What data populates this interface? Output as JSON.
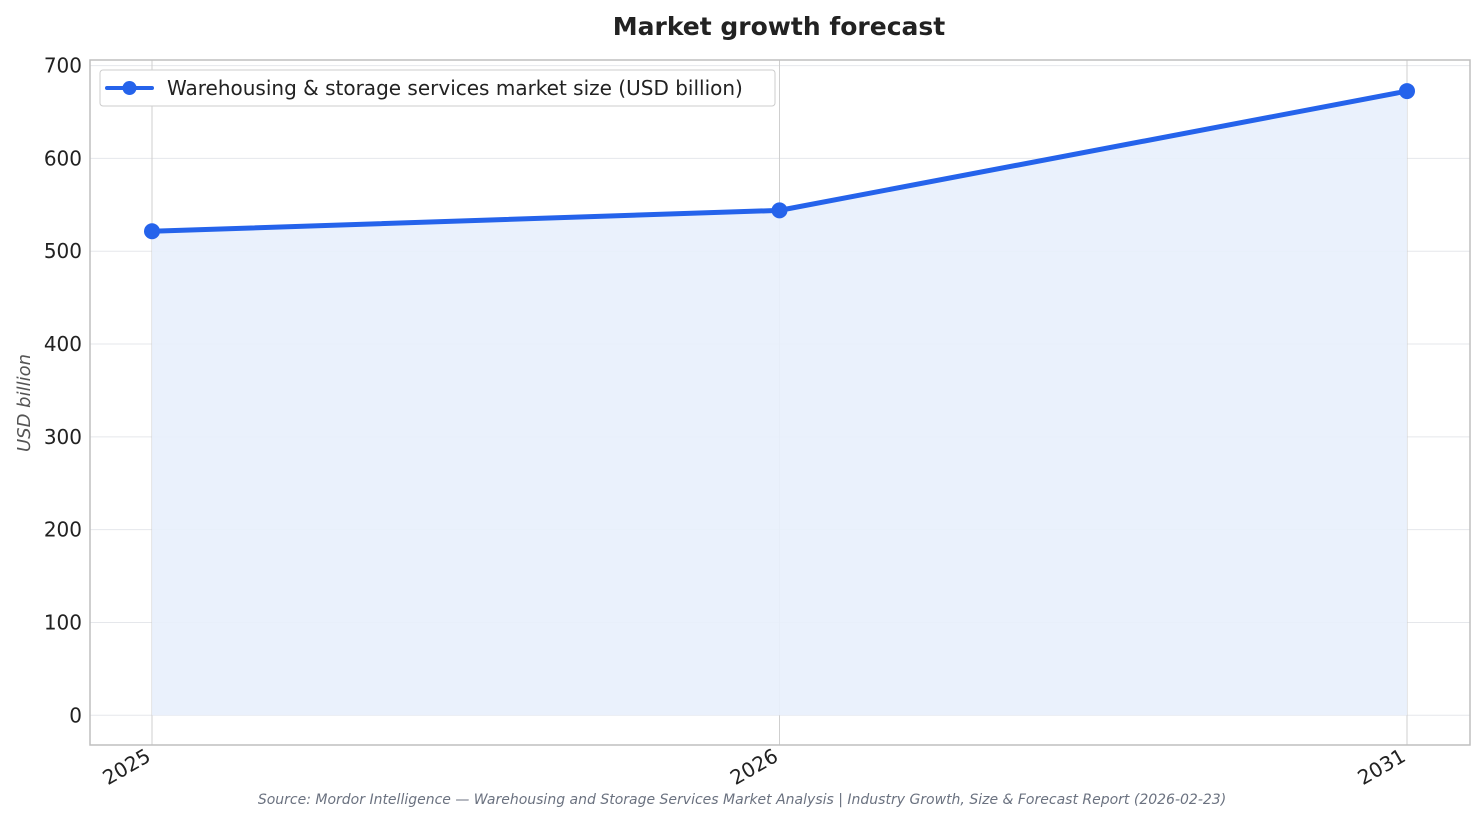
{
  "chart_data": {
    "type": "line",
    "title": "Market growth forecast",
    "xlabel": "",
    "ylabel": "USD billion",
    "categories": [
      "2025",
      "2026",
      "2031"
    ],
    "series": [
      {
        "name": "Warehousing & storage services market size (USD billion)",
        "values": [
          521.5,
          544.0,
          672.5
        ]
      }
    ],
    "ylim": [
      -32,
      706
    ],
    "yticks": [
      0,
      100,
      200,
      300,
      400,
      500,
      600,
      700
    ],
    "grid": true,
    "area_fill": true,
    "legend_position": "top-left",
    "source": "Source: Mordor Intelligence — Warehousing and Storage Services Market Analysis | Industry Growth, Size & Forecast Report (2026-02-23)",
    "colors": {
      "line": "#2563eb",
      "fill": "#e8effc",
      "grid": "#e5e7eb",
      "frame": "#bfbfbf"
    }
  }
}
